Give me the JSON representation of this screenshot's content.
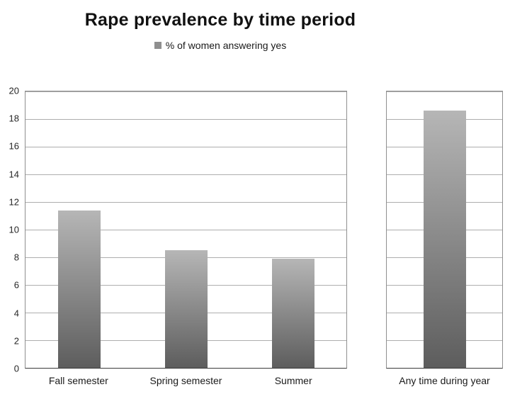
{
  "chart_data": {
    "type": "bar",
    "title": "Rape prevalence by time period",
    "legend_label": "% of women answering yes",
    "legend_position": "top-center",
    "categories": [
      "Fall semester",
      "Spring semester",
      "Summer",
      "Any time during year"
    ],
    "values": [
      11.4,
      8.5,
      7.9,
      18.6
    ],
    "groups": [
      [
        0,
        1,
        2
      ],
      [
        3
      ]
    ],
    "ylim": [
      0,
      20
    ],
    "ytick_step": 2,
    "yticks": [
      0,
      2,
      4,
      6,
      8,
      10,
      12,
      14,
      16,
      18,
      20
    ],
    "grid": true,
    "bar_color_top": "#b6b6b6",
    "bar_color_bottom": "#5d5d5d",
    "legend_marker_color": "#8f8f8f",
    "gridline_color": "#aeaeae"
  }
}
